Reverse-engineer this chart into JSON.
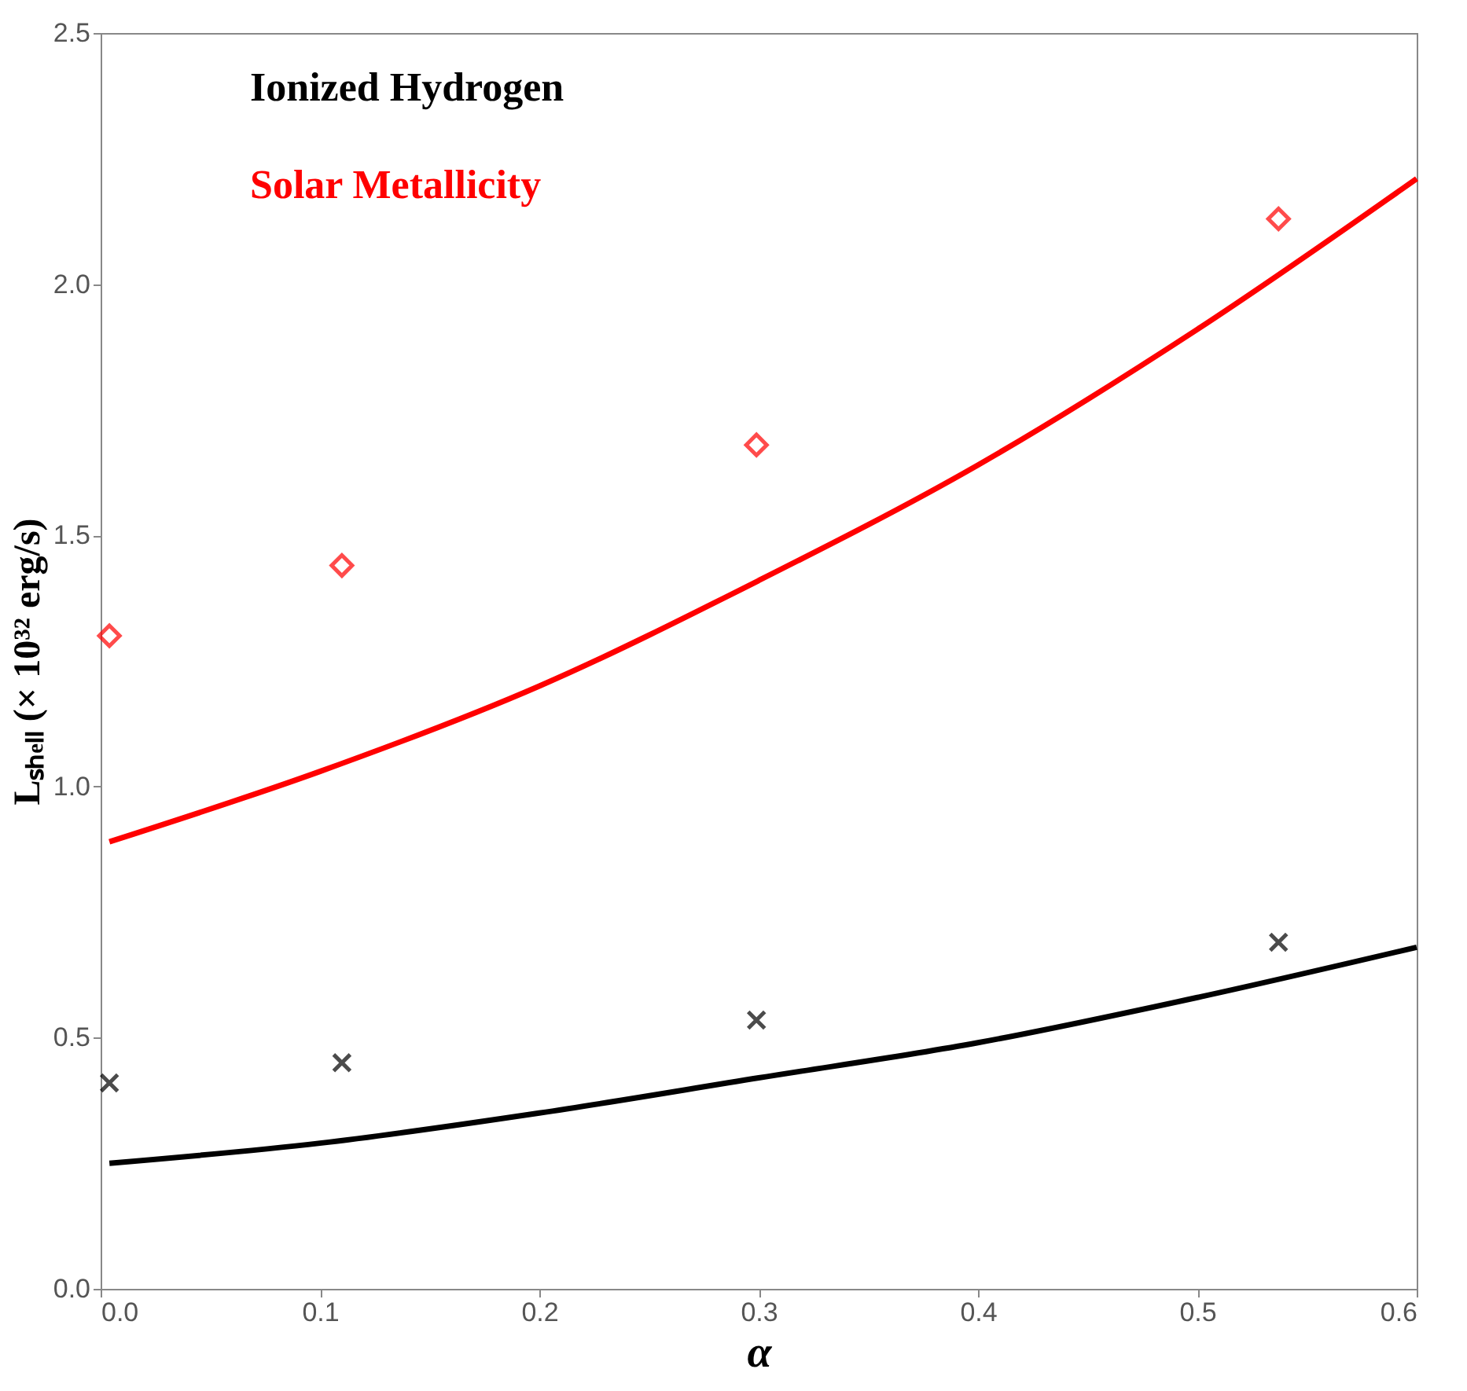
{
  "chart_data": {
    "type": "scatter",
    "xlabel": "α",
    "ylabel": "Lₛₕₑₗₗ (× 10³² erg/s)",
    "xlim": [
      0,
      0.6
    ],
    "ylim": [
      0,
      2.5
    ],
    "xticks": [
      {
        "value": 0,
        "label": "0.0"
      },
      0.1,
      0.2,
      0.3,
      0.4,
      0.5,
      0.6
    ],
    "yticks": [
      {
        "value": 0,
        "label": "0.0"
      },
      0.5,
      {
        "value": 1,
        "label": "1.0"
      },
      1.5,
      {
        "value": 2,
        "label": "2.0"
      },
      2.5
    ],
    "grid": false,
    "series": [
      {
        "name": "Ionized Hydrogen",
        "type": "line",
        "color": "#000000",
        "marker": "none",
        "line_style": "solid",
        "x": [
          0.004,
          0.1,
          0.2,
          0.3,
          0.4,
          0.5,
          0.6
        ],
        "values": [
          0.25,
          0.29,
          0.35,
          0.42,
          0.49,
          0.58,
          0.68
        ]
      },
      {
        "color": "#000000",
        "marker": "cross",
        "x": [
          0.004,
          0.11,
          0.299,
          0.537
        ],
        "values": [
          0.41,
          0.45,
          0.535,
          0.69
        ]
      },
      {
        "name": "Solar Metallicity",
        "type": "line",
        "color": "#ff0000",
        "marker": "none",
        "line_style": "solid",
        "x": [
          0.004,
          0.1,
          0.2,
          0.3,
          0.4,
          0.5,
          0.6
        ],
        "values": [
          0.89,
          1.03,
          1.2,
          1.41,
          1.64,
          1.91,
          2.21
        ]
      },
      {
        "color": "#ff0000",
        "marker": "diamond",
        "x": [
          0.004,
          0.11,
          0.299,
          0.537
        ],
        "values": [
          1.3,
          1.44,
          1.68,
          2.13
        ]
      }
    ]
  }
}
